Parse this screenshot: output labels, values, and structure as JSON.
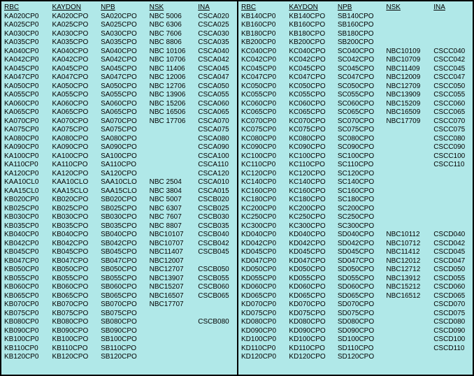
{
  "headers": [
    "RBC",
    "KAYDON",
    "NPB",
    "NSK",
    "INA"
  ],
  "left_rows": [
    [
      "KA020CP0",
      "KA020CPO",
      "SA020CPO",
      "NBC 5006",
      "CSCA020"
    ],
    [
      "KA025CP0",
      "KA025CPO",
      "SA025CPO",
      "NBC 6306",
      "CSCA025"
    ],
    [
      "KA030CP0",
      "KA030CPO",
      "SA030CPO",
      "NBC 7606",
      "CSCA030"
    ],
    [
      "KA035CP0",
      "KA035CPO",
      "SA035CPO",
      "NBC 8806",
      "CSCA035"
    ],
    [
      "KA040CP0",
      "KA040CPO",
      "SA040CPO",
      "NBC 10106",
      "CSCA040"
    ],
    [
      "KA042CP0",
      "KA042CPO",
      "SA042CPO",
      "NBC 10706",
      "CSCA042"
    ],
    [
      "KA045CP0",
      "KA045CPO",
      "SA045CPO",
      "NBC 11406",
      "CSCA045"
    ],
    [
      "KA047CP0",
      "KA047CPO",
      "SA047CPO",
      "NBC 12006",
      "CSCA047"
    ],
    [
      "KA050CP0",
      "KA050CPO",
      "SA050CPO",
      "NBC 12706",
      "CSCA050"
    ],
    [
      "KA055CP0",
      "KA055CPO",
      "SA055CPO",
      "NBC 13906",
      "CSCA055"
    ],
    [
      "KA060CP0",
      "KA060CPO",
      "SA060CPO",
      "NBC 15206",
      "CSCA060"
    ],
    [
      "KA065CP0",
      "KA065CPO",
      "SA065CPO",
      "NBC 16506",
      "CSCA065"
    ],
    [
      "KA070CP0",
      "KA070CPO",
      "SA070CPO",
      "NBC 17706",
      "CSCA070"
    ],
    [
      "KA075CP0",
      "KA075CPO",
      "SA075CPO",
      "",
      "CSCA075"
    ],
    [
      "KA080CP0",
      "KA080CPO",
      "SA080CPO",
      "",
      "CSCA080"
    ],
    [
      "KA090CP0",
      "KA090CPO",
      "SA090CPO",
      "",
      "CSCA090"
    ],
    [
      "KA100CP0",
      "KA100CPO",
      "SA100CPO",
      "",
      "CSCA100"
    ],
    [
      "KA110CP0",
      "KA110CPO",
      "SA110CPO",
      "",
      "CSCA110"
    ],
    [
      "KA120CP0",
      "KA120CPO",
      "SA120CPO",
      "",
      "CSCA120"
    ],
    [
      "KAA10CL0",
      "KAA10CLO",
      "SAA10CLO",
      "NBC 2504",
      "CSCA010"
    ],
    [
      "KAA15CL0",
      "KAA15CLO",
      "SAA15CLO",
      "NBC 3804",
      "CSCA015"
    ],
    [
      "KB020CP0",
      "KB020CPO",
      "SB020CPO",
      "NBC 5007",
      "CSCB020"
    ],
    [
      "KB025CP0",
      "KB025CPO",
      "SB025CPO",
      "NBC 6307",
      "CSCB025"
    ],
    [
      "KB030CP0",
      "KB030CPO",
      "SB030CPO",
      "NBC 7607",
      "CSCB030"
    ],
    [
      "KB035CP0",
      "KB035CPO",
      "SB035CPO",
      "NBC 8807",
      "CSCB035"
    ],
    [
      "KB040CP0",
      "KB040CPO",
      "SB040CPO",
      "NBC10107",
      "CSCB040"
    ],
    [
      "KB042CP0",
      "KB042CPO",
      "SB042CPO",
      "NBC10707",
      "CSCB042"
    ],
    [
      "KB045CP0",
      "KB045CPO",
      "SB045CPO",
      "NBC11407",
      "CSCB045"
    ],
    [
      "KB047CP0",
      "KB047CPO",
      "SB047CPO",
      "NBC12007",
      ""
    ],
    [
      "KB050CP0",
      "KB050CPO",
      "SB050CPO",
      "NBC12707",
      "CSCB050"
    ],
    [
      "KB055CP0",
      "KB055CPO",
      "SB055CPO",
      "NBC13907",
      "CSCB055"
    ],
    [
      "KB060CP0",
      "KB060CPO",
      "SB060CPO",
      "NBC15207",
      "CSCB060"
    ],
    [
      "KB065CP0",
      "KB065CPO",
      "SB065CPO",
      "NBC16507",
      "CSCB065"
    ],
    [
      "KB070CP0",
      "KB070CPO",
      "SB070CPO",
      "NBC17707",
      ""
    ],
    [
      "KB075CP0",
      "KB075CPO",
      "SB075CPO",
      "",
      ""
    ],
    [
      "KB080CP0",
      "KB080CPO",
      "SB080CPO",
      "",
      "CSCB080"
    ],
    [
      "KB090CP0",
      "KB090CPO",
      "SB090CPO",
      "",
      ""
    ],
    [
      "KB100CP0",
      "KB100CPO",
      "SB100CPO",
      "",
      ""
    ],
    [
      "KB110CP0",
      "KB110CPO",
      "SB110CPO",
      "",
      ""
    ],
    [
      "KB120CP0",
      "KB120CPO",
      "SB120CPO",
      "",
      ""
    ]
  ],
  "right_rows": [
    [
      "KB140CP0",
      "KB140CPO",
      "SB140CPO",
      "",
      ""
    ],
    [
      "KB160CP0",
      "KB160CPO",
      "SB160CPO",
      "",
      ""
    ],
    [
      "KB180CP0",
      "KB180CPO",
      "SB180CPO",
      "",
      ""
    ],
    [
      "KB200CP0",
      "KB200CPO",
      "SB200CPO",
      "",
      ""
    ],
    [
      "KC040CP0",
      "KC040CPO",
      "SC040CPO",
      "NBC10109",
      "CSCC040"
    ],
    [
      "KC042CP0",
      "KC042CPO",
      "SC042CPO",
      "NBC10709",
      "CSCC042"
    ],
    [
      "KC045CP0",
      "KC045CPO",
      "SC045CPO",
      "NBC11409",
      "CSCC045"
    ],
    [
      "KC047CP0",
      "KC047CPO",
      "SC047CPO",
      "NBC12009",
      "CSCC047"
    ],
    [
      "KC050CP0",
      "KC050CPO",
      "SC050CPO",
      "NBC12709",
      "CSCC050"
    ],
    [
      "KC055CP0",
      "KC055CPO",
      "SC055CPO",
      "NBC13909",
      "CSCC055"
    ],
    [
      "KC060CP0",
      "KC060CPO",
      "SC060CPO",
      "NBC15209",
      "CSCC060"
    ],
    [
      "KC065CP0",
      "KC065CPO",
      "SC065CPO",
      "NBC16509",
      "CSCC065"
    ],
    [
      "KC070CP0",
      "KC070CPO",
      "SC070CPO",
      "NBC17709",
      "CSCC070"
    ],
    [
      "KC075CP0",
      "KC075CPO",
      "SC075CPO",
      "",
      "CSCC075"
    ],
    [
      "KC080CP0",
      "KC080CPO",
      "SC080CPO",
      "",
      "CSCC080"
    ],
    [
      "KC090CP0",
      "KC090CPO",
      "SC090CPO",
      "",
      "CSCC090"
    ],
    [
      "KC100CP0",
      "KC100CPO",
      "SC100CPO",
      "",
      "CSCC100"
    ],
    [
      "KC110CP0",
      "KC110CPO",
      "SC110CPO",
      "",
      "CSCC110"
    ],
    [
      "KC120CP0",
      "KC120CPO",
      "SC120CPO",
      "",
      ""
    ],
    [
      "KC140CP0",
      "KC140CPO",
      "SC140CPO",
      "",
      ""
    ],
    [
      "KC160CP0",
      "KC160CPO",
      "SC160CPO",
      "",
      ""
    ],
    [
      "KC180CP0",
      "KC180CPO",
      "SC180CPO",
      "",
      ""
    ],
    [
      "KC200CP0",
      "KC200CPO",
      "SC200CPO",
      "",
      ""
    ],
    [
      "KC250CP0",
      "KC250CPO",
      "SC250CPO",
      "",
      ""
    ],
    [
      "KC300CP0",
      "KC300CPO",
      "SC300CPO",
      "",
      ""
    ],
    [
      "KD040CP0",
      "KD040CPO",
      "SD040CPO",
      "NBC10112",
      "CSCD040"
    ],
    [
      "KD042CP0",
      "KD042CPO",
      "SD042CPO",
      "NBC10712",
      "CSCD042"
    ],
    [
      "KD045CP0",
      "KD045CPO",
      "SD045CPO",
      "NBC11412",
      "CSCD045"
    ],
    [
      "KD047CP0",
      "KD047CPO",
      "SD047CPO",
      "NBC12012",
      "CSCD047"
    ],
    [
      "KD050CP0",
      "KD050CPO",
      "SD050CPO",
      "NBC12712",
      "CSCD050"
    ],
    [
      "KD055CP0",
      "KD055CPO",
      "SD055CPO",
      "NBC13912",
      "CSCD055"
    ],
    [
      "KD060CP0",
      "KD060CPO",
      "SD060CPO",
      "NBC15212",
      "CSCD060"
    ],
    [
      "KD065CP0",
      "KD065CPO",
      "SD065CPO",
      "NBC16512",
      "CSCD065"
    ],
    [
      "KD070CP0",
      "KD070CPO",
      "SD070CPO",
      "",
      "CSCD070"
    ],
    [
      "KD075CP0",
      "KD075CPO",
      "SD075CPO",
      "",
      "CSCD075"
    ],
    [
      "KD080CP0",
      "KD080CPO",
      "SD080CPO",
      "",
      "CSCD080"
    ],
    [
      "KD090CP0",
      "KD090CPO",
      "SD090CPO",
      "",
      "CSCD090"
    ],
    [
      "KD100CP0",
      "KD100CPO",
      "SD100CPO",
      "",
      "CSCD100"
    ],
    [
      "KD110CP0",
      "KD110CPO",
      "SD110CPO",
      "",
      "CSCD110"
    ],
    [
      "KD120CP0",
      "KD120CPO",
      "SD120CPO",
      "",
      ""
    ]
  ],
  "colors": {
    "panel_bg": "#b0e8e8",
    "border": "#000000"
  }
}
